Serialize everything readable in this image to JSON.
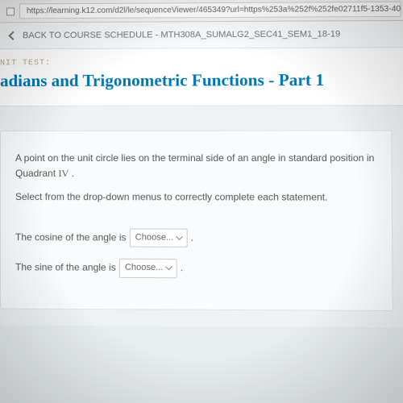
{
  "browser": {
    "url": "https://learning.k12.com/d2l/le/sequenceViewer/465349?url=https%253a%252f%252fe02711f5-1353-40b6"
  },
  "backbar": {
    "text": "BACK TO COURSE SCHEDULE - MTH308A_SUMALG2_SEC41_SEM1_18-19"
  },
  "header": {
    "unit_label": "NIT TEST:",
    "title": "adians and Trigonometric Functions - Part 1"
  },
  "question": {
    "line1_pre": "A point on the unit circle lies on the terminal side of an angle in standard position in Quadrant ",
    "quadrant": "IV",
    "line1_post": " .",
    "line2": "Select from the drop-down menus to correctly complete each statement.",
    "stmt1_pre": "The cosine of the angle is",
    "stmt2_pre": "The sine of the angle is",
    "dropdown_label": "Choose...",
    "period": "."
  }
}
